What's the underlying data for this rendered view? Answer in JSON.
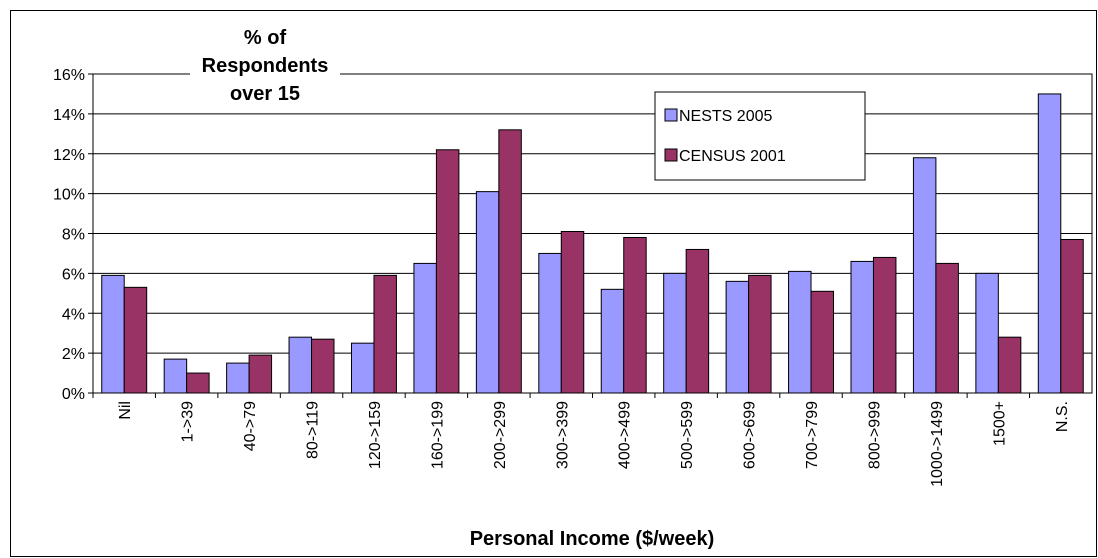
{
  "chart_data": {
    "type": "bar",
    "x_label": "Personal Income ($/week)",
    "y_label": "% of Respondents over 15",
    "categories": [
      "Nil",
      "1->39",
      "40->79",
      "80->119",
      "120->159",
      "160->199",
      "200->299",
      "300->399",
      "400->499",
      "500->599",
      "600->699",
      "700->799",
      "800->999",
      "1000->1499",
      "1500+",
      "N.S."
    ],
    "series": [
      {
        "name": "NESTS 2005",
        "color": "#9999ff",
        "values": [
          5.9,
          1.7,
          1.5,
          2.8,
          2.5,
          6.5,
          10.1,
          7.0,
          5.2,
          6.0,
          5.6,
          6.1,
          6.6,
          11.8,
          6.0,
          15.0
        ]
      },
      {
        "name": "CENSUS 2001",
        "color": "#993366",
        "values": [
          5.3,
          1.0,
          1.9,
          2.7,
          5.9,
          12.2,
          13.2,
          8.1,
          7.8,
          7.2,
          5.9,
          5.1,
          6.8,
          6.5,
          2.8,
          7.7
        ]
      }
    ],
    "ylim": [
      0,
      16
    ],
    "yticks": [
      {
        "value": 0,
        "label": "0%"
      },
      {
        "value": 2,
        "label": "2%"
      },
      {
        "value": 4,
        "label": "4%"
      },
      {
        "value": 6,
        "label": "6%"
      },
      {
        "value": 8,
        "label": "8%"
      },
      {
        "value": 10,
        "label": "10%"
      },
      {
        "value": 12,
        "label": "12%"
      },
      {
        "value": 14,
        "label": "14%"
      },
      {
        "value": 16,
        "label": "16%"
      }
    ],
    "grid": true,
    "legend": "top-right"
  }
}
